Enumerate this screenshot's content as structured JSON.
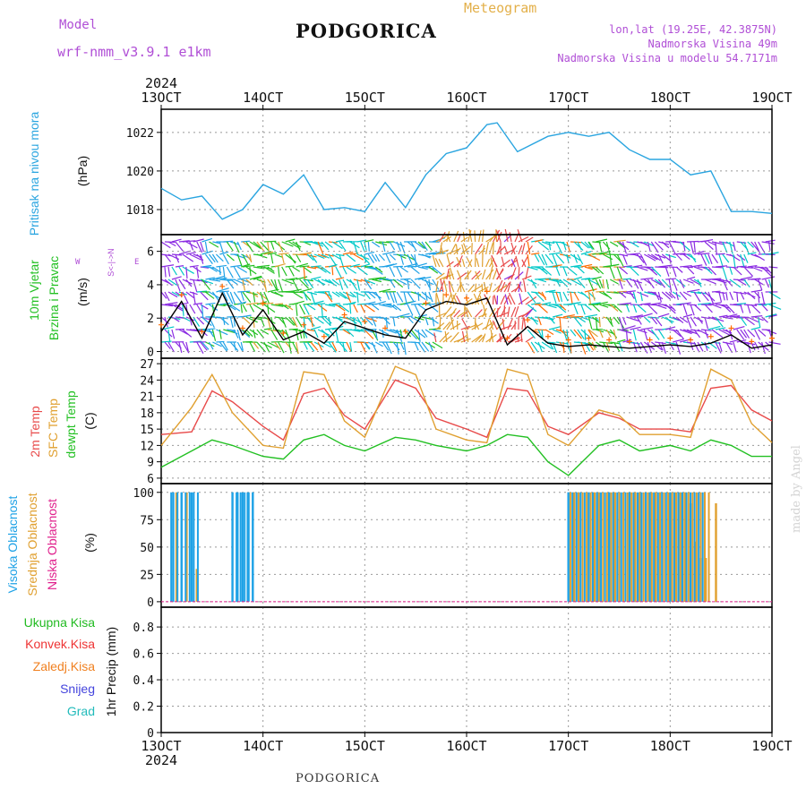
{
  "header": {
    "model_label": "Model",
    "model_name": "wrf-nmm_v3.9.1 e1km",
    "city": "PODGORICA",
    "meteogram": "Meteogram",
    "lonlat": "lon,lat (19.25E, 42.3875N)",
    "elevation": "Nadmorska Visina 49m",
    "model_elevation": "Nadmorska Visina u modelu 54.7171m"
  },
  "footer": {
    "city": "PODGORICA",
    "watermark": "made by Angel"
  },
  "time_axis": {
    "year": "2024",
    "ticks": [
      "13OCT",
      "14OCT",
      "15OCT",
      "16OCT",
      "17OCT",
      "18OCT",
      "19OCT"
    ],
    "day_range": [
      13,
      19
    ]
  },
  "panel_labels": {
    "pressure": {
      "name": "Pritisak na nivou mora",
      "unit": "(hPa)"
    },
    "wind": {
      "name": "10m Vjetar",
      "name2": "Brzina i Pravac",
      "unit": "(m/s)",
      "compass_w": "W",
      "compass_e": "E",
      "compass_ns": "S<-|->N"
    },
    "temp": {
      "t2m": "2m Temp",
      "sfc": "SFC Temp",
      "dew": "dewpt Temp",
      "unit": "(C)"
    },
    "cloud": {
      "high": "Visoka Oblacnost",
      "mid": "Srednja Oblacnost",
      "low": "Niska Oblacnost",
      "unit": "(%)"
    },
    "precip": {
      "total": "Ukupna Kisa",
      "conv": "Konvek.Kisa",
      "frz": "Zaledj.Kisa",
      "snow": "Snijeg",
      "hail": "Grad",
      "unit": "1hr Precip (mm)"
    }
  },
  "colors": {
    "pressure": "#2aa5e0",
    "t2m": "#e84a4a",
    "sfc": "#e0a030",
    "dew": "#22c022",
    "cloud_high": "#1fa2e6",
    "cloud_mid": "#e0a030",
    "cloud_low": "#e0208c",
    "precip_total": "#22bb22",
    "precip_conv": "#ee3333",
    "precip_frz": "#f08020",
    "precip_snow": "#4444dd",
    "precip_hail": "#22bbbb",
    "wind_line": "#000000",
    "wind_gust": "#ff6a00"
  },
  "chart_data": [
    {
      "type": "line",
      "id": "pressure",
      "yticks": [
        1018,
        1020,
        1022
      ],
      "ylim": [
        1016.7,
        1023.2
      ],
      "series": [
        {
          "x": [
            13.0,
            13.2,
            13.4,
            13.6,
            13.8,
            14.0,
            14.2,
            14.4,
            14.6,
            14.8,
            15.0,
            15.2,
            15.4,
            15.6,
            15.8,
            16.0,
            16.2,
            16.3,
            16.5,
            16.8,
            17.0,
            17.2,
            17.4,
            17.6,
            17.8,
            18.0,
            18.2,
            18.4,
            18.6,
            18.8,
            19.0
          ],
          "y": [
            1019.1,
            1018.5,
            1018.7,
            1017.5,
            1018.0,
            1019.3,
            1018.8,
            1019.8,
            1018.0,
            1018.1,
            1017.9,
            1019.4,
            1018.1,
            1019.8,
            1020.9,
            1021.2,
            1022.4,
            1022.5,
            1021.0,
            1021.8,
            1022.0,
            1021.8,
            1022.0,
            1021.1,
            1020.6,
            1020.6,
            1019.8,
            1020.0,
            1017.9,
            1017.9,
            1017.8
          ]
        }
      ]
    },
    {
      "type": "line",
      "id": "wind",
      "yticks": [
        0,
        2,
        4,
        6
      ],
      "ylim": [
        -0.4,
        7.0
      ],
      "series": [
        {
          "x": [
            13.0,
            13.2,
            13.4,
            13.6,
            13.8,
            14.0,
            14.2,
            14.4,
            14.6,
            14.8,
            15.0,
            15.2,
            15.4,
            15.6,
            15.8,
            16.0,
            16.2,
            16.4,
            16.6,
            16.8,
            17.0,
            17.2,
            17.4,
            17.6,
            17.8,
            18.0,
            18.2,
            18.4,
            18.6,
            18.8,
            19.0
          ],
          "y": [
            1.2,
            3.0,
            0.8,
            3.5,
            1.0,
            2.5,
            0.7,
            1.2,
            0.5,
            1.8,
            1.4,
            1.0,
            0.8,
            2.5,
            3.0,
            2.8,
            3.2,
            0.4,
            1.5,
            0.5,
            0.3,
            0.4,
            0.3,
            0.2,
            0.3,
            0.4,
            0.3,
            0.5,
            1.0,
            0.2,
            0.4
          ]
        }
      ]
    },
    {
      "type": "line",
      "id": "temperature",
      "yticks": [
        6,
        9,
        12,
        15,
        18,
        21,
        24,
        27
      ],
      "ylim": [
        5,
        28
      ],
      "series": [
        {
          "name": "2m Temp",
          "x": [
            13.0,
            13.3,
            13.5,
            13.7,
            14.0,
            14.2,
            14.4,
            14.6,
            14.8,
            15.0,
            15.3,
            15.5,
            15.7,
            16.0,
            16.2,
            16.4,
            16.6,
            16.8,
            17.0,
            17.3,
            17.5,
            17.7,
            18.0,
            18.2,
            18.4,
            18.6,
            18.8,
            19.0
          ],
          "y": [
            14,
            14.5,
            22,
            20,
            15.5,
            13,
            21.5,
            22.5,
            17.5,
            15,
            24,
            22.5,
            17,
            15,
            13.5,
            22.5,
            22,
            15.5,
            14,
            18,
            17,
            15,
            15,
            14.5,
            22.5,
            23,
            18.5,
            16.5
          ]
        },
        {
          "name": "SFC Temp",
          "x": [
            13.0,
            13.3,
            13.5,
            13.7,
            14.0,
            14.2,
            14.4,
            14.6,
            14.8,
            15.0,
            15.3,
            15.5,
            15.7,
            16.0,
            16.2,
            16.4,
            16.6,
            16.8,
            17.0,
            17.3,
            17.5,
            17.7,
            18.0,
            18.2,
            18.4,
            18.6,
            18.8,
            19.0
          ],
          "y": [
            12,
            19,
            25,
            18,
            12,
            11.5,
            25.5,
            25,
            16.5,
            13.5,
            26.5,
            25,
            15,
            13,
            12.5,
            26,
            25,
            14,
            12,
            18.5,
            17.5,
            14,
            14,
            13.5,
            26,
            24,
            16,
            12.5
          ]
        },
        {
          "name": "dewpt Temp",
          "x": [
            13.0,
            13.3,
            13.5,
            13.7,
            14.0,
            14.2,
            14.4,
            14.6,
            14.8,
            15.0,
            15.3,
            15.5,
            15.7,
            16.0,
            16.2,
            16.4,
            16.6,
            16.8,
            17.0,
            17.3,
            17.5,
            17.7,
            18.0,
            18.2,
            18.4,
            18.6,
            18.8,
            19.0
          ],
          "y": [
            8,
            11,
            13,
            12,
            10,
            9.5,
            13,
            14,
            12,
            11,
            13.5,
            13,
            12,
            11,
            12,
            14,
            13.5,
            9,
            6.5,
            12,
            13,
            11,
            12,
            11,
            13,
            12,
            10,
            10
          ]
        }
      ]
    },
    {
      "type": "bar",
      "id": "clouds",
      "yticks": [
        0,
        25,
        50,
        75,
        100
      ],
      "ylim": [
        -5,
        108
      ],
      "series": [
        {
          "name": "Visoka Oblacnost",
          "x": [
            13.1,
            13.2,
            13.3,
            13.7,
            13.75,
            13.8,
            13.85,
            13.9,
            17.0,
            17.1,
            17.2,
            17.3,
            17.4,
            17.5,
            17.6,
            17.7,
            17.8,
            17.9,
            18.0,
            18.1,
            18.2,
            18.3
          ],
          "values": [
            100,
            100,
            100,
            100,
            100,
            100,
            100,
            100,
            100,
            100,
            100,
            100,
            100,
            100,
            100,
            100,
            100,
            100,
            100,
            100,
            90,
            40
          ]
        },
        {
          "name": "Srednja Oblacnost",
          "x": [
            13.15,
            13.25,
            13.35,
            17.05,
            17.25,
            17.45,
            17.65,
            17.85,
            18.05,
            18.15,
            18.25,
            18.35,
            18.45
          ],
          "values": [
            100,
            100,
            30,
            100,
            100,
            100,
            100,
            100,
            100,
            100,
            55,
            40,
            90
          ]
        },
        {
          "name": "Niska Oblacnost",
          "x": [],
          "values": []
        }
      ]
    },
    {
      "type": "bar",
      "id": "precipitation",
      "yticks": [
        0,
        0.2,
        0.4,
        0.6,
        0.8
      ],
      "ylim": [
        0,
        0.95
      ],
      "series": []
    }
  ]
}
